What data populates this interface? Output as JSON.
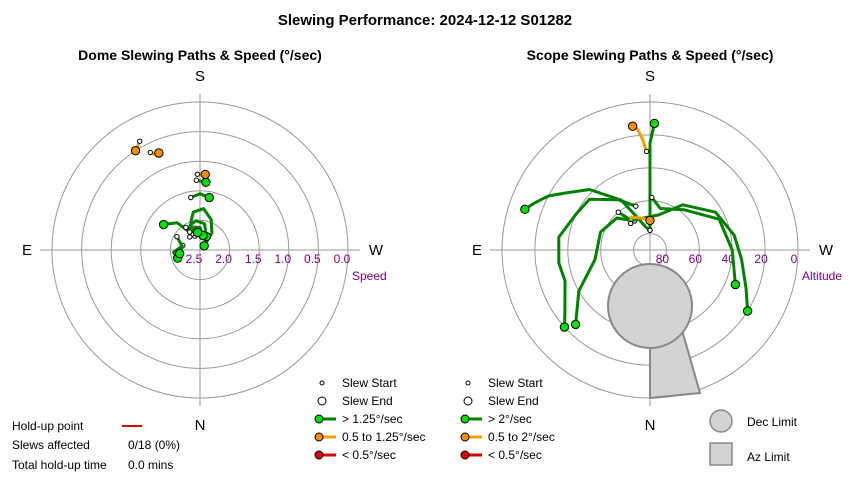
{
  "title": "Slewing Performance: 2024-12-12 S01282",
  "colors": {
    "grid": "#999999",
    "fast": "#008000",
    "fast_marker": "#00dd00",
    "medium": "#f0a000",
    "medium_marker": "#f09000",
    "slow": "#dd0000",
    "axis_label": "#800080",
    "limit_fill": "#d3d3d3",
    "limit_stroke": "#888888"
  },
  "holdup": {
    "point_label": "Hold-up point",
    "slews_label": "Slews affected",
    "slews_value": "0/18 (0%)",
    "time_label": "Total hold-up time",
    "time_value": "0.0 mins"
  },
  "chart_data": [
    {
      "type": "polar-paths",
      "title": "Dome Slewing Paths & Speed (°/sec)",
      "compass": {
        "top": "S",
        "bottom": "N",
        "left": "E",
        "right": "W"
      },
      "radial_label": "Speed",
      "radial_ticks": [
        "2.5",
        "2.0",
        "1.5",
        "1.0",
        "0.5",
        "0.0"
      ],
      "rlim": [
        2.5,
        0.0
      ],
      "legend": [
        {
          "label": "Slew Start",
          "kind": "start"
        },
        {
          "label": "Slew End",
          "kind": "end"
        },
        {
          "label": "> 1.25°/sec",
          "kind": "fast"
        },
        {
          "label": "0.5 to 1.25°/sec",
          "kind": "medium"
        },
        {
          "label": "< 0.5°/sec",
          "kind": "slow"
        }
      ],
      "series": [
        {
          "speed_class": "fast",
          "points": [
            [
              -20,
              2.25
            ],
            [
              -40,
              1.9
            ],
            [
              -55,
              1.75
            ]
          ]
        },
        {
          "speed_class": "fast",
          "points": [
            [
              -28,
              2.2
            ],
            [
              -18,
              2.0
            ],
            [
              -10,
              1.85
            ],
            [
              5,
              1.8
            ],
            [
              20,
              1.95
            ],
            [
              35,
              2.15
            ],
            [
              45,
              2.4
            ]
          ]
        },
        {
          "speed_class": "fast",
          "points": [
            [
              -38,
              2.22
            ],
            [
              -22,
              2.05
            ],
            [
              -8,
              2.0
            ],
            [
              10,
              2.05
            ],
            [
              25,
              2.25
            ]
          ]
        },
        {
          "speed_class": "fast",
          "points": [
            [
              -30,
              2.15
            ],
            [
              -15,
              2.1
            ],
            [
              0,
              2.12
            ],
            [
              12,
              2.25
            ]
          ]
        },
        {
          "speed_class": "fast",
          "points": [
            [
              -32,
              2.05
            ],
            [
              -20,
              2.12
            ],
            [
              -8,
              2.2
            ]
          ]
        },
        {
          "speed_class": "fast",
          "points": [
            [
              -75,
              2.2
            ],
            [
              -95,
              2.05
            ],
            [
              -110,
              2.1
            ]
          ]
        },
        {
          "speed_class": "fast",
          "points": [
            [
              -10,
              1.6
            ],
            [
              0,
              1.55
            ],
            [
              10,
              1.6
            ]
          ]
        },
        {
          "speed_class": "fast",
          "points": [
            [
              -3,
              1.32
            ],
            [
              5,
              1.35
            ]
          ]
        },
        {
          "speed_class": "fast",
          "points": [
            [
              -60,
              2.05
            ],
            [
              -80,
              2.2
            ],
            [
              -100,
              2.15
            ]
          ]
        },
        {
          "speed_class": "medium",
          "points": [
            [
              -2,
              1.22
            ],
            [
              4,
              1.22
            ]
          ]
        },
        {
          "speed_class": "medium",
          "points": [
            [
              -29,
              0.4
            ],
            [
              -33,
              0.5
            ]
          ]
        },
        {
          "speed_class": "medium",
          "points": [
            [
              -27,
              0.65
            ],
            [
              -26,
              0.7
            ],
            [
              -23,
              0.72
            ]
          ]
        }
      ]
    },
    {
      "type": "polar-paths",
      "title": "Scope Slewing Paths & Speed (°/sec)",
      "compass": {
        "top": "S",
        "bottom": "N",
        "left": "E",
        "right": "W"
      },
      "radial_label": "Altitude",
      "radial_ticks": [
        "80",
        "60",
        "40",
        "20",
        "0"
      ],
      "rlim": [
        90,
        0
      ],
      "legend": [
        {
          "label": "Slew Start",
          "kind": "start"
        },
        {
          "label": "Slew End",
          "kind": "end"
        },
        {
          "label": "> 2°/sec",
          "kind": "fast"
        },
        {
          "label": "0.5 to 2°/sec",
          "kind": "medium"
        },
        {
          "label": "< 0.5°/sec",
          "kind": "slow"
        }
      ],
      "limits": [
        {
          "label": "Dec Limit",
          "shape": "circle"
        },
        {
          "label": "Az Limit",
          "shape": "square"
        }
      ],
      "series": [
        {
          "speed_class": "fast",
          "points": [
            [
              0,
              78
            ],
            [
              0,
              62
            ],
            [
              0,
              45
            ],
            [
              0,
              25
            ],
            [
              2,
              13
            ]
          ]
        },
        {
          "speed_class": "fast",
          "points": [
            [
              0,
              78
            ],
            [
              -10,
              76
            ],
            [
              -22,
              68
            ],
            [
              -30,
              55
            ],
            [
              -45,
              38
            ],
            [
              -56,
              28
            ],
            [
              -62,
              20
            ],
            [
              -68,
              14
            ],
            [
              -72,
              10
            ]
          ]
        },
        {
          "speed_class": "fast",
          "points": [
            [
              -18,
              62
            ],
            [
              -32,
              54
            ],
            [
              -50,
              42
            ],
            [
              -64,
              40
            ],
            [
              -82,
              34
            ],
            [
              -98,
              34
            ],
            [
              -110,
              35
            ],
            [
              -126,
              26
            ],
            [
              -132,
              20
            ]
          ]
        },
        {
          "speed_class": "fast",
          "points": [
            [
              -28,
              70
            ],
            [
              -46,
              62
            ],
            [
              -70,
              58
            ],
            [
              -100,
              56
            ],
            [
              -120,
              40
            ],
            [
              -135,
              26
            ]
          ]
        },
        {
          "speed_class": "fast",
          "points": [
            [
              -40,
              60
            ],
            [
              -32,
              69
            ],
            [
              -6,
              70
            ],
            [
              14,
              68
            ],
            [
              36,
              56
            ],
            [
              60,
              44
            ],
            [
              80,
              38
            ],
            [
              96,
              34
            ],
            [
              112,
              27
            ],
            [
              122,
              20
            ]
          ]
        },
        {
          "speed_class": "fast",
          "points": [
            [
              2,
              58
            ],
            [
              14,
              64
            ],
            [
              40,
              58
            ],
            [
              66,
              44
            ],
            [
              90,
              40
            ],
            [
              112,
              34
            ]
          ]
        },
        {
          "speed_class": "medium",
          "points": [
            [
              -2,
              30
            ],
            [
              -4,
              22
            ],
            [
              -6,
              16
            ],
            [
              -8,
              14
            ]
          ]
        },
        {
          "speed_class": "medium",
          "points": [
            [
              -36,
              70
            ],
            [
              -30,
              67
            ],
            [
              -14,
              70
            ],
            [
              0,
              72
            ]
          ]
        }
      ]
    }
  ]
}
